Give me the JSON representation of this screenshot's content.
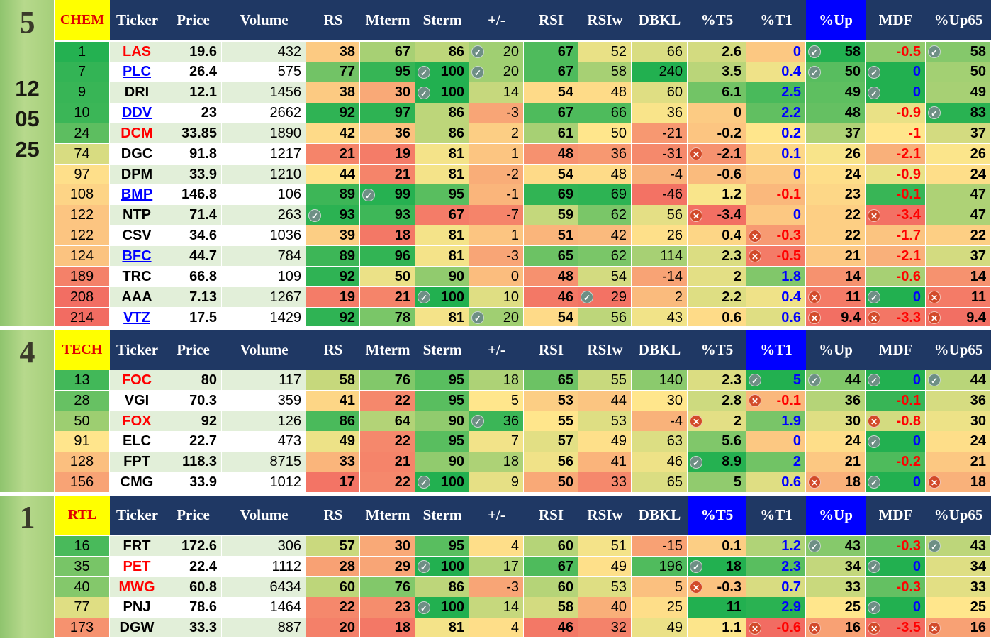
{
  "columns": [
    "Ticker",
    "Price",
    "Volume",
    "RS",
    "Mterm",
    "Sterm",
    "+/-",
    "RSI",
    "RSIw",
    "DBKL",
    "%T5",
    "%T1",
    "%Up",
    "MDF",
    "%Up65"
  ],
  "date": [
    "12",
    "05",
    "25"
  ],
  "colors": {
    "header": "#1f3864",
    "highlight_header": "#0000ff",
    "sector_bg": "#ffff00",
    "sector_text": "#e00000",
    "red_text": "#ff0000",
    "blue_text": "#0000ff"
  },
  "icons": {
    "ok": "check-circle-icon",
    "bad": "cross-circle-icon"
  },
  "sections": [
    {
      "rank": "5",
      "sector": "CHEM",
      "highlight": "%Up",
      "rows": [
        {
          "pos": "1",
          "ticker": "LAS",
          "tstyle": "red",
          "price": "19.6",
          "volume": "432",
          "rs": "38",
          "mterm": "67",
          "sterm": "86",
          "pm": "20",
          "pm_icon": "ok",
          "rsi": "67",
          "rsiw": "52",
          "dbkl": "66",
          "t5": "2.6",
          "t1": "0",
          "up": "58",
          "up_icon": "ok",
          "mdf": "-0.5",
          "up65": "58",
          "up65_icon": "ok"
        },
        {
          "pos": "7",
          "ticker": "PLC",
          "tstyle": "link",
          "price": "26.4",
          "volume": "575",
          "rs": "77",
          "mterm": "95",
          "sterm": "100",
          "sterm_icon": "ok",
          "pm": "20",
          "pm_icon": "ok",
          "rsi": "67",
          "rsiw": "58",
          "dbkl": "240",
          "t5": "3.5",
          "t1": "0.4",
          "up": "50",
          "up_icon": "ok",
          "mdf": "0",
          "mdf_icon": "ok",
          "up65": "50"
        },
        {
          "pos": "9",
          "ticker": "DRI",
          "tstyle": "",
          "price": "12.1",
          "volume": "1456",
          "rs": "38",
          "mterm": "30",
          "sterm": "100",
          "sterm_icon": "ok",
          "pm": "14",
          "rsi": "54",
          "rsiw": "48",
          "dbkl": "60",
          "t5": "6.1",
          "t1": "2.5",
          "up": "49",
          "mdf": "0",
          "mdf_icon": "ok",
          "up65": "49"
        },
        {
          "pos": "10",
          "ticker": "DDV",
          "tstyle": "link",
          "price": "23",
          "volume": "2662",
          "rs": "92",
          "mterm": "97",
          "sterm": "86",
          "pm": "-3",
          "rsi": "67",
          "rsiw": "66",
          "dbkl": "36",
          "t5": "0",
          "t1": "2.2",
          "up": "48",
          "mdf": "-0.9",
          "up65": "83",
          "up65_icon": "ok"
        },
        {
          "pos": "24",
          "ticker": "DCM",
          "tstyle": "red",
          "price": "33.85",
          "volume": "1890",
          "rs": "42",
          "mterm": "36",
          "sterm": "86",
          "pm": "2",
          "rsi": "61",
          "rsiw": "50",
          "dbkl": "-21",
          "t5": "-0.2",
          "t1": "0.2",
          "up": "37",
          "mdf": "-1",
          "up65": "37"
        },
        {
          "pos": "74",
          "ticker": "DGC",
          "tstyle": "",
          "price": "91.8",
          "volume": "1217",
          "rs": "21",
          "mterm": "19",
          "sterm": "81",
          "pm": "1",
          "rsi": "48",
          "rsiw": "36",
          "dbkl": "-31",
          "t5": "-2.1",
          "t5_icon": "bad",
          "t1": "0.1",
          "up": "26",
          "mdf": "-2.1",
          "up65": "26"
        },
        {
          "pos": "97",
          "ticker": "DPM",
          "tstyle": "",
          "price": "33.9",
          "volume": "1210",
          "rs": "44",
          "mterm": "21",
          "sterm": "81",
          "pm": "-2",
          "rsi": "54",
          "rsiw": "48",
          "dbkl": "-4",
          "t5": "-0.6",
          "t1": "0",
          "up": "24",
          "mdf": "-0.9",
          "up65": "24"
        },
        {
          "pos": "108",
          "ticker": "BMP",
          "tstyle": "link",
          "price": "146.8",
          "volume": "106",
          "rs": "89",
          "mterm": "99",
          "mterm_icon": "ok",
          "sterm": "95",
          "pm": "-1",
          "rsi": "69",
          "rsiw": "69",
          "dbkl": "-46",
          "t5": "1.2",
          "t1": "-0.1",
          "up": "23",
          "mdf": "-0.1",
          "up65": "47"
        },
        {
          "pos": "122",
          "ticker": "NTP",
          "tstyle": "",
          "price": "71.4",
          "volume": "263",
          "rs": "93",
          "rs_icon": "ok",
          "mterm": "93",
          "sterm": "67",
          "pm": "-7",
          "rsi": "59",
          "rsiw": "62",
          "dbkl": "56",
          "t5": "-3.4",
          "t5_icon": "bad",
          "t1": "0",
          "up": "22",
          "mdf": "-3.4",
          "mdf_icon": "bad",
          "up65": "47"
        },
        {
          "pos": "122",
          "ticker": "CSV",
          "tstyle": "",
          "price": "34.6",
          "volume": "1036",
          "rs": "39",
          "mterm": "18",
          "sterm": "81",
          "pm": "1",
          "rsi": "51",
          "rsiw": "42",
          "dbkl": "26",
          "t5": "0.4",
          "t1": "-0.3",
          "t1_icon": "bad",
          "up": "22",
          "mdf": "-1.7",
          "up65": "22"
        },
        {
          "pos": "124",
          "ticker": "BFC",
          "tstyle": "link",
          "price": "44.7",
          "volume": "784",
          "rs": "89",
          "mterm": "96",
          "sterm": "81",
          "pm": "-3",
          "rsi": "65",
          "rsiw": "62",
          "dbkl": "114",
          "t5": "2.3",
          "t1": "-0.5",
          "t1_icon": "bad",
          "up": "21",
          "mdf": "-2.1",
          "up65": "37"
        },
        {
          "pos": "189",
          "ticker": "TRC",
          "tstyle": "",
          "price": "66.8",
          "volume": "109",
          "rs": "92",
          "mterm": "50",
          "sterm": "90",
          "pm": "0",
          "rsi": "48",
          "rsiw": "54",
          "dbkl": "-14",
          "t5": "2",
          "t1": "1.8",
          "up": "14",
          "mdf": "-0.6",
          "up65": "14"
        },
        {
          "pos": "208",
          "ticker": "AAA",
          "tstyle": "",
          "price": "7.13",
          "volume": "1267",
          "rs": "19",
          "mterm": "21",
          "sterm": "100",
          "sterm_icon": "ok",
          "pm": "10",
          "rsi": "46",
          "rsiw": "29",
          "rsiw_icon": "ok",
          "dbkl": "2",
          "t5": "2.2",
          "t1": "0.4",
          "up": "11",
          "up_icon": "bad",
          "mdf": "0",
          "mdf_icon": "ok",
          "up65": "11",
          "up65_icon": "bad"
        },
        {
          "pos": "214",
          "ticker": "VTZ",
          "tstyle": "link",
          "price": "17.5",
          "volume": "1429",
          "rs": "92",
          "mterm": "78",
          "sterm": "81",
          "pm": "20",
          "pm_icon": "ok",
          "rsi": "54",
          "rsiw": "56",
          "dbkl": "43",
          "t5": "0.6",
          "t1": "0.6",
          "up": "9.4",
          "up_icon": "bad",
          "mdf": "-3.3",
          "mdf_icon": "bad",
          "up65": "9.4",
          "up65_icon": "bad"
        }
      ]
    },
    {
      "rank": "4",
      "sector": "TECH",
      "highlight": "%T1",
      "rows": [
        {
          "pos": "13",
          "ticker": "FOC",
          "tstyle": "red",
          "price": "80",
          "volume": "117",
          "rs": "58",
          "mterm": "76",
          "sterm": "95",
          "pm": "18",
          "rsi": "65",
          "rsiw": "55",
          "dbkl": "140",
          "t5": "2.3",
          "t1": "5",
          "t1_icon": "ok",
          "up": "44",
          "up_icon": "ok",
          "mdf": "0",
          "mdf_icon": "ok",
          "up65": "44",
          "up65_icon": "ok"
        },
        {
          "pos": "28",
          "ticker": "VGI",
          "tstyle": "",
          "price": "70.3",
          "volume": "359",
          "rs": "41",
          "mterm": "22",
          "sterm": "95",
          "pm": "5",
          "rsi": "53",
          "rsiw": "44",
          "dbkl": "30",
          "t5": "2.8",
          "t1": "-0.1",
          "t1_icon": "bad",
          "up": "36",
          "mdf": "-0.1",
          "up65": "36"
        },
        {
          "pos": "50",
          "ticker": "FOX",
          "tstyle": "red",
          "price": "92",
          "volume": "126",
          "rs": "86",
          "mterm": "64",
          "sterm": "90",
          "pm": "36",
          "pm_icon": "ok",
          "rsi": "55",
          "rsiw": "53",
          "dbkl": "-4",
          "t5": "2",
          "t5_icon": "bad",
          "t1": "1.9",
          "up": "30",
          "mdf": "-0.8",
          "mdf_icon": "bad",
          "up65": "30"
        },
        {
          "pos": "91",
          "ticker": "ELC",
          "tstyle": "",
          "price": "22.7",
          "volume": "473",
          "rs": "49",
          "mterm": "22",
          "sterm": "95",
          "pm": "7",
          "rsi": "57",
          "rsiw": "49",
          "dbkl": "63",
          "t5": "5.6",
          "t1": "0",
          "up": "24",
          "mdf": "0",
          "mdf_icon": "ok",
          "up65": "24"
        },
        {
          "pos": "128",
          "ticker": "FPT",
          "tstyle": "",
          "price": "118.3",
          "volume": "8715",
          "rs": "33",
          "mterm": "21",
          "sterm": "90",
          "pm": "18",
          "rsi": "56",
          "rsiw": "41",
          "dbkl": "46",
          "t5": "8.9",
          "t5_icon": "ok",
          "t1": "2",
          "up": "21",
          "mdf": "-0.2",
          "up65": "21"
        },
        {
          "pos": "156",
          "ticker": "CMG",
          "tstyle": "",
          "price": "33.9",
          "volume": "1012",
          "rs": "17",
          "mterm": "22",
          "sterm": "100",
          "sterm_icon": "ok",
          "pm": "9",
          "rsi": "50",
          "rsiw": "33",
          "dbkl": "65",
          "t5": "5",
          "t1": "0.6",
          "up": "18",
          "up_icon": "bad",
          "mdf": "0",
          "mdf_icon": "ok",
          "up65": "18",
          "up65_icon": "bad"
        }
      ]
    },
    {
      "rank": "1",
      "sector": "RTL",
      "highlight": "%T5",
      "highlight2": "%Up",
      "rows": [
        {
          "pos": "16",
          "ticker": "FRT",
          "tstyle": "",
          "price": "172.6",
          "volume": "306",
          "rs": "57",
          "mterm": "30",
          "sterm": "95",
          "pm": "4",
          "rsi": "60",
          "rsiw": "51",
          "dbkl": "-15",
          "t5": "0.1",
          "t1": "1.2",
          "up": "43",
          "up_icon": "ok",
          "mdf": "-0.3",
          "up65": "43",
          "up65_icon": "ok"
        },
        {
          "pos": "35",
          "ticker": "PET",
          "tstyle": "red",
          "price": "22.4",
          "volume": "1112",
          "rs": "28",
          "mterm": "29",
          "sterm": "100",
          "sterm_icon": "ok",
          "pm": "17",
          "rsi": "67",
          "rsiw": "49",
          "dbkl": "196",
          "t5": "18",
          "t5_icon": "ok",
          "t1": "2.3",
          "up": "34",
          "mdf": "0",
          "mdf_icon": "ok",
          "up65": "34"
        },
        {
          "pos": "40",
          "ticker": "MWG",
          "tstyle": "red",
          "price": "60.8",
          "volume": "6434",
          "rs": "60",
          "mterm": "76",
          "sterm": "86",
          "pm": "-3",
          "rsi": "60",
          "rsiw": "53",
          "dbkl": "5",
          "t5": "-0.3",
          "t5_icon": "bad",
          "t1": "0.7",
          "up": "33",
          "mdf": "-0.3",
          "up65": "33"
        },
        {
          "pos": "77",
          "ticker": "PNJ",
          "tstyle": "",
          "price": "78.6",
          "volume": "1464",
          "rs": "22",
          "mterm": "23",
          "sterm": "100",
          "sterm_icon": "ok",
          "pm": "14",
          "rsi": "58",
          "rsiw": "40",
          "dbkl": "25",
          "t5": "11",
          "t1": "2.9",
          "up": "25",
          "mdf": "0",
          "mdf_icon": "ok",
          "up65": "25"
        },
        {
          "pos": "173",
          "ticker": "DGW",
          "tstyle": "",
          "price": "33.3",
          "volume": "887",
          "rs": "20",
          "mterm": "18",
          "sterm": "81",
          "pm": "4",
          "rsi": "46",
          "rsiw": "32",
          "dbkl": "49",
          "t5": "1.1",
          "t1": "-0.6",
          "t1_icon": "bad",
          "up": "16",
          "up_icon": "bad",
          "mdf": "-3.5",
          "mdf_icon": "bad",
          "up65": "16",
          "up65_icon": "bad"
        }
      ]
    }
  ]
}
